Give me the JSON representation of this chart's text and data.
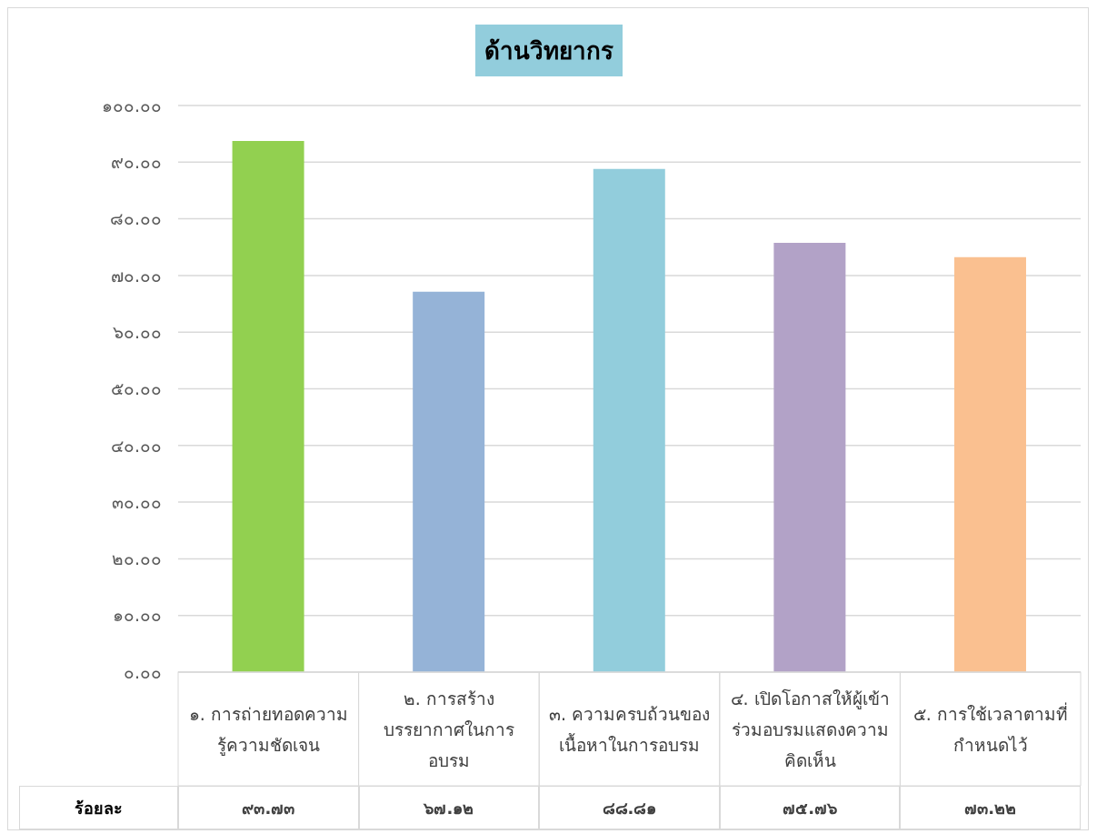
{
  "chart_data": {
    "type": "bar",
    "title": "ด้านวิทยากร",
    "categories": [
      "๑. การถ่ายทอดความรู้ความชัดเจน",
      "๒. การสร้างบรรยากาศในการอบรม",
      "๓. ความครบถ้วนของเนื้อหาในการอบรม",
      "๔. เปิดโอกาสให้ผู้เข้าร่วมอบรมแสดงความคิดเห็น",
      "๕. การใช้เวลาตามที่กำหนดไว้"
    ],
    "series": [
      {
        "name": "ร้อยละ",
        "values": [
          93.73,
          67.12,
          88.81,
          75.76,
          73.22
        ],
        "colors": [
          "#92d050",
          "#95b3d7",
          "#92cddc",
          "#b2a2c7",
          "#fac090"
        ],
        "value_labels": [
          "๙๓.๗๓",
          "๖๗.๑๒",
          "๘๘.๘๑",
          "๗๕.๗๖",
          "๗๓.๒๒"
        ]
      }
    ],
    "ylim": [
      0,
      100
    ],
    "yticks": [
      {
        "value": 0,
        "label": "๐.๐๐"
      },
      {
        "value": 10,
        "label": "๑๐.๐๐"
      },
      {
        "value": 20,
        "label": "๒๐.๐๐"
      },
      {
        "value": 30,
        "label": "๓๐.๐๐"
      },
      {
        "value": 40,
        "label": "๔๐.๐๐"
      },
      {
        "value": 50,
        "label": "๕๐.๐๐"
      },
      {
        "value": 60,
        "label": "๖๐.๐๐"
      },
      {
        "value": 70,
        "label": "๗๐.๐๐"
      },
      {
        "value": 80,
        "label": "๘๐.๐๐"
      },
      {
        "value": 90,
        "label": "๙๐.๐๐"
      },
      {
        "value": 100,
        "label": "๑๐๐.๐๐"
      }
    ],
    "grid": "y"
  }
}
